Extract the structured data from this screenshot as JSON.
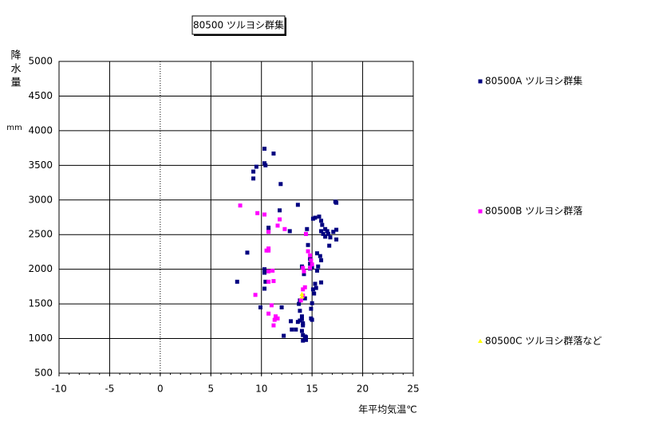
{
  "chart_data": {
    "type": "scatter",
    "title": "80500 ツルヨシ群集",
    "x_label": "年平均気温℃",
    "y_label": "降水量",
    "y_unit": "mm",
    "xlim": [
      -10,
      25
    ],
    "xticks": [
      -10,
      -5,
      0,
      5,
      10,
      15,
      20,
      25
    ],
    "ylim": [
      500,
      5000
    ],
    "yticks": [
      500,
      1000,
      1500,
      2000,
      2500,
      3000,
      3500,
      4000,
      4500,
      5000
    ],
    "grid": true,
    "legend": "right",
    "series": [
      {
        "name": "80500A ツルヨシ群集",
        "color": "#000080",
        "marker": "square",
        "x": [
          10.3,
          11.2,
          10.3,
          10.4,
          9.5,
          9.2,
          9.2,
          11.9,
          13.6,
          11.8,
          17.3,
          17.4,
          10.7,
          10.7,
          12.8,
          14.5,
          14.4,
          15.3,
          15.7,
          15.9,
          16.0,
          16.3,
          16.5,
          15.9,
          16.1,
          16.6,
          16.8,
          17.1,
          17.4,
          17.4,
          16.7,
          16.3,
          15.1,
          14.6,
          8.6,
          15.5,
          15.8,
          15.9,
          15.6,
          15.0,
          15.5,
          10.3,
          10.3,
          14.0,
          14.8,
          14.8,
          14.8,
          14.2,
          14.2,
          7.6,
          10.4,
          10.3,
          15.3,
          15.4,
          15.9,
          15.1,
          15.2,
          14.3,
          13.8,
          13.7,
          15.0,
          14.9,
          9.9,
          12.0,
          13.8,
          14.0,
          14.0,
          14.1,
          13.8,
          14.9,
          15.0,
          13.6,
          12.9,
          13.4,
          13.0,
          14.1,
          14.0,
          14.1,
          14.3,
          14.4,
          14.1,
          14.4,
          12.2
        ],
        "y": [
          3740,
          3670,
          3530,
          3500,
          3480,
          3410,
          3310,
          3230,
          2930,
          2850,
          2975,
          2960,
          2600,
          2550,
          2550,
          2580,
          2510,
          2744,
          2760,
          2700,
          2640,
          2580,
          2550,
          2550,
          2510,
          2510,
          2460,
          2540,
          2570,
          2430,
          2340,
          2470,
          2730,
          2350,
          2240,
          2230,
          2190,
          2130,
          2040,
          2030,
          1980,
          2000,
          1950,
          2040,
          2150,
          2080,
          2010,
          1970,
          1930,
          1820,
          1820,
          1720,
          1790,
          1730,
          1810,
          1710,
          1650,
          1580,
          1550,
          1500,
          1510,
          1430,
          1450,
          1450,
          1400,
          1320,
          1280,
          1220,
          1260,
          1290,
          1270,
          1240,
          1250,
          1130,
          1130,
          1190,
          1110,
          1050,
          1030,
          980,
          970,
          1020,
          1040
        ]
      },
      {
        "name": "80500B ツルヨシ群落",
        "color": "#ff00ff",
        "marker": "square",
        "x": [
          7.9,
          9.6,
          10.3,
          11.8,
          11.6,
          12.3,
          10.7,
          14.4,
          10.7,
          10.5,
          10.7,
          14.6,
          14.8,
          14.9,
          15.0,
          14.8,
          14.1,
          14.2,
          11.1,
          10.7,
          11.2,
          10.7,
          14.3,
          14.1,
          14.1,
          13.9,
          9.4,
          11.0,
          10.7,
          11.4,
          11.3,
          11.6,
          11.2
        ],
        "y": [
          2920,
          2810,
          2790,
          2720,
          2630,
          2580,
          2540,
          2510,
          2300,
          2270,
          2270,
          2260,
          2200,
          2130,
          2070,
          2020,
          2020,
          1970,
          1980,
          1970,
          1830,
          1820,
          1740,
          1710,
          1620,
          1550,
          1630,
          1480,
          1360,
          1320,
          1270,
          1290,
          1190
        ]
      },
      {
        "name": "80500C ツルヨシ群落など",
        "color": "#ffff00",
        "marker": "triangle",
        "x": [
          14.0,
          14.0
        ],
        "y": [
          1640,
          1600
        ]
      }
    ]
  }
}
